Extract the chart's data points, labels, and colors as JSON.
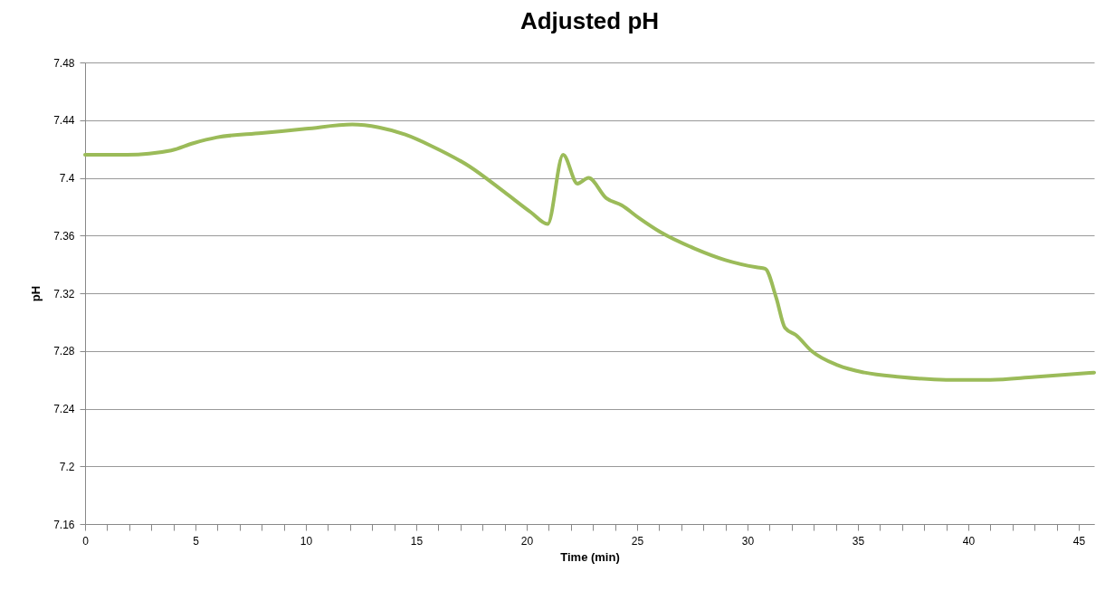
{
  "chart_data": {
    "type": "line",
    "title": "Adjusted pH",
    "xlabel": "Time (min)",
    "ylabel": "pH",
    "x": [
      0,
      1.9,
      3.9,
      4.9,
      5.95,
      8,
      10,
      12.1,
      13.3,
      14.5,
      15.7,
      17.4,
      19,
      20.2,
      20.95,
      21.65,
      22.3,
      22.8,
      23.6,
      24.3,
      25.1,
      26.1,
      27.6,
      29,
      30.4,
      30.8,
      31.3,
      31.7,
      32.2,
      32.9,
      34.1,
      35.3,
      36.9,
      39,
      41,
      43,
      45.7
    ],
    "series": [
      {
        "color": "#9bbb59",
        "values": [
          7.416,
          7.416,
          7.419,
          7.424,
          7.428,
          7.431,
          7.434,
          7.437,
          7.435,
          7.43,
          7.422,
          7.408,
          7.39,
          7.376,
          7.368,
          7.416,
          7.396,
          7.4,
          7.386,
          7.381,
          7.372,
          7.362,
          7.351,
          7.343,
          7.338,
          7.337,
          7.317,
          7.296,
          7.291,
          7.28,
          7.27,
          7.265,
          7.262,
          7.26,
          7.26,
          7.262,
          7.265
        ]
      }
    ],
    "xlim": [
      0,
      45.7
    ],
    "xticks": [
      0,
      {
        "value": 1,
        "label": null
      },
      {
        "value": 2,
        "label": null
      },
      {
        "value": 3,
        "label": null
      },
      {
        "value": 4,
        "label": null
      },
      5,
      {
        "value": 6,
        "label": null
      },
      {
        "value": 7,
        "label": null
      },
      {
        "value": 8,
        "label": null
      },
      {
        "value": 9,
        "label": null
      },
      10,
      {
        "value": 11,
        "label": null
      },
      {
        "value": 12,
        "label": null
      },
      {
        "value": 13,
        "label": null
      },
      {
        "value": 14,
        "label": null
      },
      15,
      {
        "value": 16,
        "label": null
      },
      {
        "value": 17,
        "label": null
      },
      {
        "value": 18,
        "label": null
      },
      {
        "value": 19,
        "label": null
      },
      20,
      {
        "value": 21,
        "label": null
      },
      {
        "value": 22,
        "label": null
      },
      {
        "value": 23,
        "label": null
      },
      {
        "value": 24,
        "label": null
      },
      25,
      {
        "value": 26,
        "label": null
      },
      {
        "value": 27,
        "label": null
      },
      {
        "value": 28,
        "label": null
      },
      {
        "value": 29,
        "label": null
      },
      30,
      {
        "value": 31,
        "label": null
      },
      {
        "value": 32,
        "label": null
      },
      {
        "value": 33,
        "label": null
      },
      {
        "value": 34,
        "label": null
      },
      35,
      {
        "value": 36,
        "label": null
      },
      {
        "value": 37,
        "label": null
      },
      {
        "value": 38,
        "label": null
      },
      {
        "value": 39,
        "label": null
      },
      40,
      {
        "value": 41,
        "label": null
      },
      {
        "value": 42,
        "label": null
      },
      {
        "value": 43,
        "label": null
      },
      {
        "value": 44,
        "label": null
      },
      45
    ],
    "ylim": [
      7.16,
      7.48
    ],
    "yticks": [
      7.16,
      7.2,
      7.24,
      7.28,
      7.32,
      7.36,
      7.4,
      7.44,
      7.48
    ],
    "grid": "y",
    "marker": "none",
    "line_style": "solid"
  }
}
